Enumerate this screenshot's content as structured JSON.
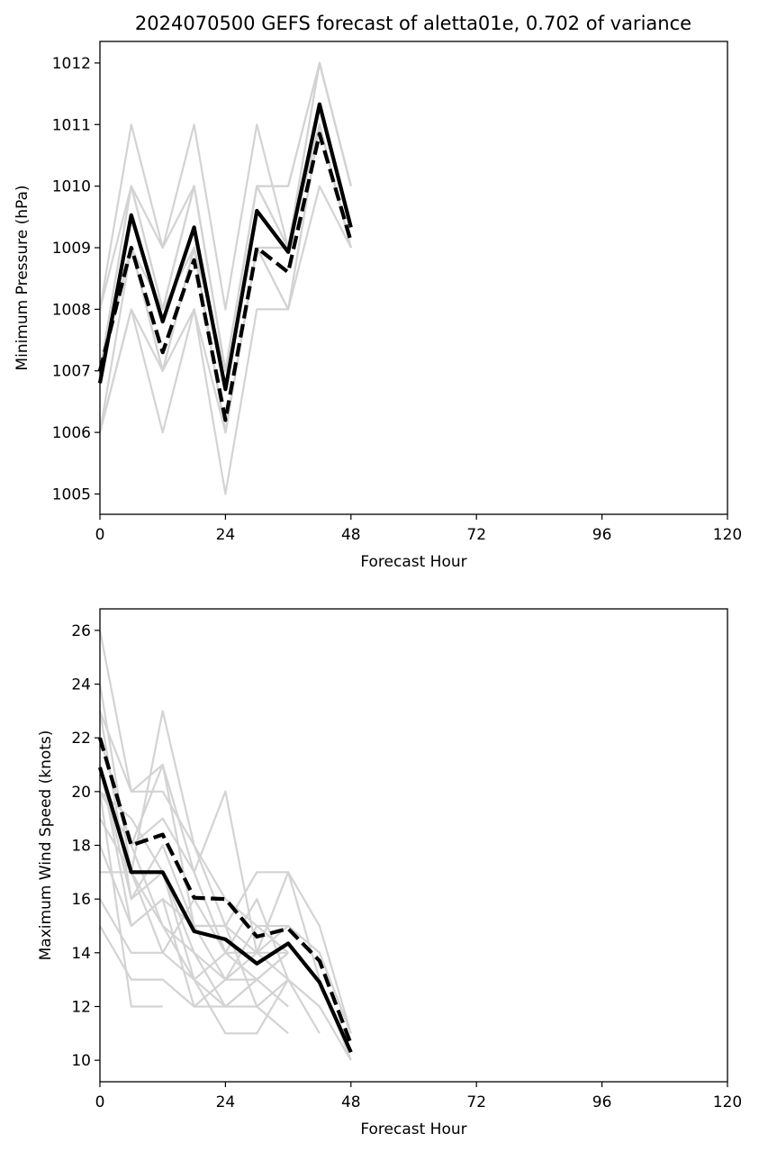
{
  "title": "2024070500 GEFS forecast of aletta01e, 0.702 of variance",
  "chart_data": [
    {
      "type": "line",
      "xlabel": "Forecast Hour",
      "ylabel": "Minimum Pressure (hPa)",
      "xlim": [
        0,
        120
      ],
      "ylim": [
        1004.67,
        1012.35
      ],
      "xticks": [
        0,
        24,
        48,
        72,
        96,
        120
      ],
      "yticks": [
        1005,
        1006,
        1007,
        1008,
        1009,
        1010,
        1011,
        1012
      ],
      "grid": false,
      "members": [
        {
          "x": [
            0,
            6,
            12,
            18,
            24,
            30,
            36,
            42,
            48
          ],
          "y": [
            1006,
            1008,
            1006,
            1008,
            1005,
            1008,
            1008,
            1010,
            1009
          ]
        },
        {
          "x": [
            0,
            6,
            12,
            18,
            24,
            30,
            36,
            42,
            48
          ],
          "y": [
            1008,
            1011,
            1009,
            1011,
            1008,
            1011,
            1009,
            1012,
            1010
          ]
        },
        {
          "x": [
            0,
            6,
            12,
            18,
            24,
            30,
            36,
            42,
            48
          ],
          "y": [
            1007,
            1010,
            1008,
            1010,
            1007,
            1010,
            1010,
            1012,
            1010
          ]
        },
        {
          "x": [
            0,
            6,
            12,
            18,
            24,
            30,
            36,
            42,
            48
          ],
          "y": [
            1006,
            1009,
            1007,
            1009,
            1006,
            1009,
            1008,
            1011,
            1009
          ]
        },
        {
          "x": [
            0,
            6,
            12,
            18,
            24,
            30,
            36,
            42,
            48
          ],
          "y": [
            1007,
            1009,
            1007,
            1009,
            1006,
            1009,
            1009,
            1011,
            1009
          ]
        },
        {
          "x": [
            0,
            6,
            12,
            18,
            24,
            30,
            36,
            42,
            48
          ],
          "y": [
            1007,
            1010,
            1008,
            1010,
            1007,
            1010,
            1009,
            1012,
            1010
          ]
        },
        {
          "x": [
            0,
            6,
            12,
            18,
            24,
            30,
            36,
            42,
            48
          ],
          "y": [
            1006,
            1008,
            1007,
            1008,
            1006,
            1009,
            1008,
            1011,
            1009
          ]
        },
        {
          "x": [
            0,
            6,
            12,
            18,
            24,
            30,
            36,
            42,
            48
          ],
          "y": [
            1007,
            1009,
            1008,
            1009,
            1007,
            1010,
            1009,
            1011,
            1009
          ]
        },
        {
          "x": [
            0,
            6,
            12,
            18,
            24,
            30,
            36,
            42,
            48
          ],
          "y": [
            1008,
            1010,
            1009,
            1010,
            1007,
            1010,
            1010,
            1012,
            1010
          ]
        },
        {
          "x": [
            0,
            6,
            12,
            18,
            24,
            30,
            36,
            42,
            48
          ],
          "y": [
            1007,
            1009,
            1007,
            1009,
            1006,
            1009,
            1009,
            1011,
            1009
          ]
        }
      ],
      "series": [
        {
          "style": "solid",
          "x": [
            0,
            6,
            12,
            18,
            24,
            30,
            36,
            42,
            48
          ],
          "y": [
            1006.8,
            1009.53,
            1007.8,
            1009.33,
            1006.7,
            1009.6,
            1008.93,
            1011.33,
            1009.33
          ]
        },
        {
          "style": "dashed",
          "x": [
            0,
            6,
            12,
            18,
            24,
            30,
            36,
            42,
            48
          ],
          "y": [
            1007.0,
            1009.0,
            1007.3,
            1008.8,
            1006.2,
            1009.0,
            1008.6,
            1010.85,
            1009.1
          ]
        }
      ]
    },
    {
      "type": "line",
      "xlabel": "Forecast Hour",
      "ylabel": "Maximum Wind Speed (knots)",
      "xlim": [
        0,
        120
      ],
      "ylim": [
        9.2,
        26.8
      ],
      "xticks": [
        0,
        24,
        48,
        72,
        96,
        120
      ],
      "yticks": [
        10,
        12,
        14,
        16,
        18,
        20,
        22,
        24,
        26
      ],
      "grid": false,
      "members": [
        {
          "x": [
            0,
            6,
            12
          ],
          "y": [
            20,
            12,
            12
          ]
        },
        {
          "x": [
            0,
            6,
            12,
            18,
            24,
            30,
            36,
            42,
            48
          ],
          "y": [
            26,
            20,
            21,
            17,
            20,
            14,
            17,
            15,
            11
          ]
        },
        {
          "x": [
            0,
            6,
            12,
            18,
            24,
            30,
            36,
            42,
            48
          ],
          "y": [
            24,
            17,
            23,
            18,
            15,
            17,
            17,
            13,
            10
          ]
        },
        {
          "x": [
            0,
            6,
            12,
            18,
            24,
            30,
            36,
            42,
            48
          ],
          "y": [
            23,
            20,
            20,
            18,
            16,
            15,
            15,
            14,
            11
          ]
        },
        {
          "x": [
            0,
            6,
            12,
            18,
            24,
            30,
            36,
            42,
            48
          ],
          "y": [
            22,
            18,
            19,
            17,
            14,
            14,
            13,
            12,
            10
          ]
        },
        {
          "x": [
            0,
            6,
            12,
            18,
            24,
            30,
            36
          ],
          "y": [
            21,
            16,
            18,
            15,
            15,
            12,
            11
          ]
        },
        {
          "x": [
            0,
            6,
            12,
            18,
            24,
            30,
            36
          ],
          "y": [
            20,
            19,
            17,
            14,
            13,
            15,
            14
          ]
        },
        {
          "x": [
            0,
            6,
            12,
            18,
            24,
            30,
            36,
            42
          ],
          "y": [
            19,
            17,
            15,
            13,
            11,
            11,
            13,
            11
          ]
        },
        {
          "x": [
            0,
            6,
            12,
            18,
            24,
            30,
            36
          ],
          "y": [
            18,
            15,
            16,
            12,
            12,
            13,
            14
          ]
        },
        {
          "x": [
            0,
            6,
            12,
            18,
            24,
            30,
            36
          ],
          "y": [
            17,
            17,
            14,
            16,
            14,
            16,
            13
          ]
        },
        {
          "x": [
            0,
            6,
            12,
            18,
            24,
            30,
            36
          ],
          "y": [
            16,
            14,
            14,
            13,
            12,
            12,
            13
          ]
        },
        {
          "x": [
            0,
            6,
            12,
            18,
            24,
            30,
            36
          ],
          "y": [
            15,
            13,
            13,
            12,
            13,
            13,
            12
          ]
        },
        {
          "x": [
            0,
            6,
            12,
            18,
            24,
            30,
            36
          ],
          "y": [
            22,
            18,
            21,
            15,
            13,
            14,
            15
          ]
        },
        {
          "x": [
            0,
            6,
            12,
            18,
            24,
            30,
            36
          ],
          "y": [
            23,
            16,
            17,
            13,
            14,
            13,
            14
          ]
        },
        {
          "x": [
            0,
            6,
            12,
            18,
            24,
            30,
            36
          ],
          "y": [
            21,
            15,
            16,
            15,
            15,
            14,
            14
          ]
        },
        {
          "x": [
            0,
            6,
            12,
            18,
            24,
            30,
            36
          ],
          "y": [
            20,
            18,
            15,
            14,
            12,
            13,
            14
          ]
        }
      ],
      "series": [
        {
          "style": "solid",
          "x": [
            0,
            6,
            12,
            18,
            24,
            30,
            36,
            42,
            48
          ],
          "y": [
            20.9,
            17.0,
            17.0,
            14.8,
            14.5,
            13.6,
            14.35,
            12.9,
            10.3
          ]
        },
        {
          "style": "dashed",
          "x": [
            0,
            6,
            12,
            18,
            24,
            30,
            36,
            42,
            48
          ],
          "y": [
            22.0,
            18.0,
            18.4,
            16.05,
            16.0,
            14.6,
            14.9,
            13.7,
            10.6
          ]
        }
      ]
    }
  ]
}
